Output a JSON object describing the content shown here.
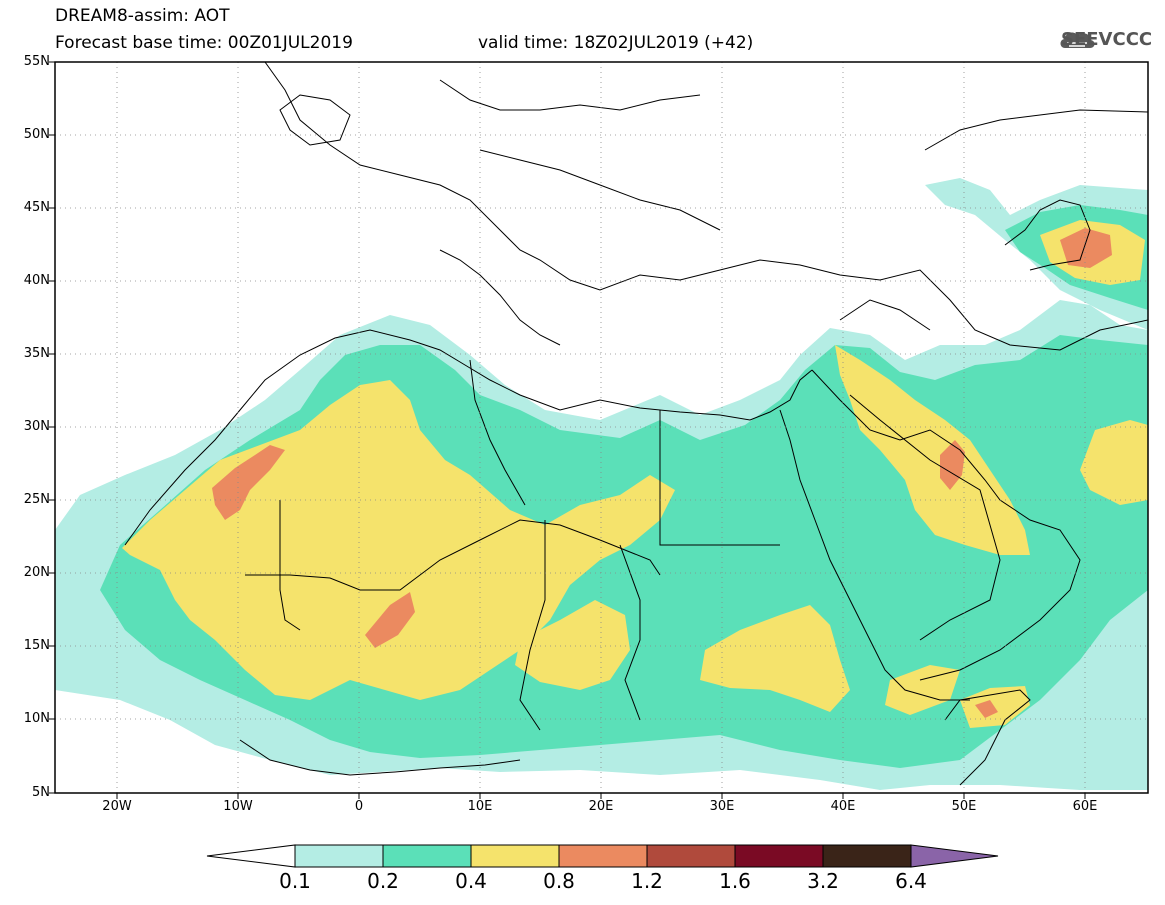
{
  "header": {
    "line1": "DREAM8-assim: AOT",
    "line2": "Forecast base time: 00Z01JUL2019",
    "valid": "valid time: 18Z02JUL2019 (+42)"
  },
  "logo": {
    "text": "SEEVCCC",
    "icon": "cloud-icon",
    "color": "#5a5a5a"
  },
  "map": {
    "lat_labels": [
      "55N",
      "50N",
      "45N",
      "40N",
      "35N",
      "30N",
      "25N",
      "20N",
      "15N",
      "10N",
      "5N"
    ],
    "lon_labels": [
      "20W",
      "10W",
      "0",
      "10E",
      "20E",
      "30E",
      "40E",
      "50E",
      "60E"
    ]
  },
  "colorbar": {
    "labels": [
      "0.1",
      "0.2",
      "0.4",
      "0.8",
      "1.2",
      "1.6",
      "3.2",
      "6.4"
    ],
    "colors": [
      "#b4ede4",
      "#5be0b8",
      "#f5e36c",
      "#eb8a60",
      "#b04a3c",
      "#7a0a24",
      "#3a2418",
      "#8a64a8"
    ],
    "under_color": "#ffffff"
  },
  "field_colors": {
    "low": "#b4ede4",
    "moderate": "#5be0b8",
    "high": "#f5e36c",
    "very_high": "#eb8a60"
  }
}
